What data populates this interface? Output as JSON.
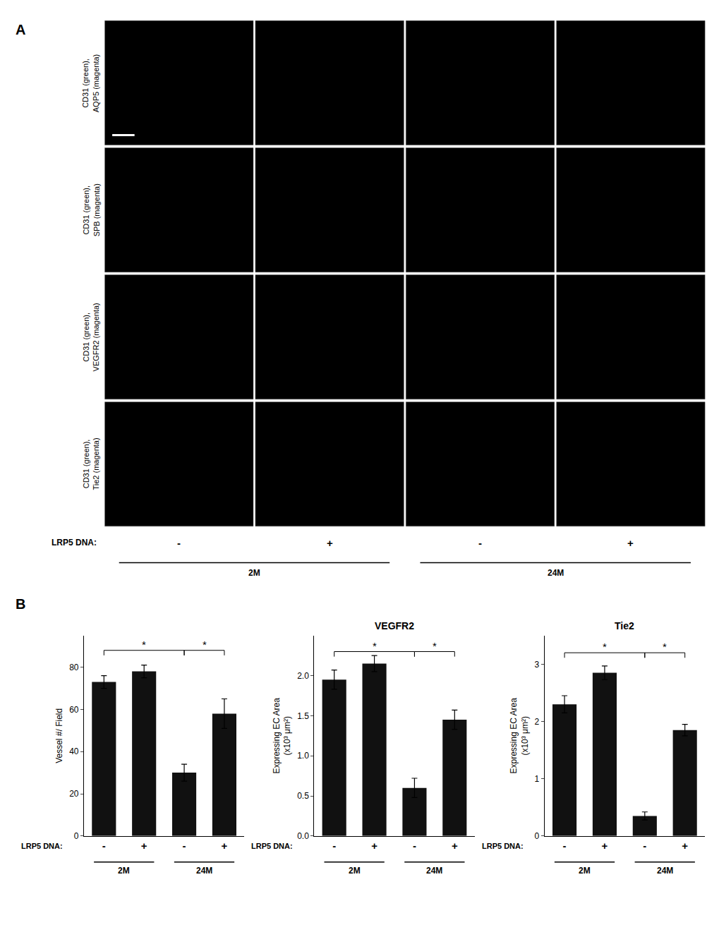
{
  "chart_data": [
    {
      "type": "image_grid",
      "panel": "A",
      "row_labels": [
        "CD31 (green),\nAQP5 (magenta)",
        "CD31 (green),\nSPB (magenta)",
        "CD31 (green),\nVEGFR2 (magenta)",
        "CD31 (green),\nTie2 (magenta)"
      ],
      "categories": [
        "-",
        "+",
        "-",
        "+"
      ],
      "xlabel": "LRP5 DNA:",
      "groups": [
        {
          "name": "2M",
          "span": [
            0,
            1
          ]
        },
        {
          "name": "24M",
          "span": [
            2,
            3
          ]
        }
      ],
      "color": "#000000"
    },
    {
      "type": "bar",
      "panel": "B",
      "ylabel": "Vessel #/ Field",
      "xlabel": "LRP5 DNA:",
      "categories": [
        "-",
        "+",
        "-",
        "+"
      ],
      "values": [
        73,
        78,
        30,
        58
      ],
      "errors": [
        3,
        3,
        4,
        7
      ],
      "ylim": [
        0,
        95
      ],
      "yticks": [
        0,
        20,
        40,
        60,
        80
      ],
      "color": "#111111",
      "grid": false,
      "groups": [
        {
          "name": "2M",
          "span": [
            0,
            1
          ]
        },
        {
          "name": "24M",
          "span": [
            2,
            3
          ]
        }
      ],
      "significance": [
        {
          "from": 0,
          "to": 2,
          "y": 88,
          "label": "*"
        },
        {
          "from": 2,
          "to": 3,
          "y": 88,
          "label": "*"
        }
      ]
    },
    {
      "type": "bar",
      "panel": "B",
      "title": "VEGFR2",
      "ylabel": "Expressing EC Area\n(x10³ μm²)",
      "xlabel": "LRP5 DNA:",
      "categories": [
        "-",
        "+",
        "-",
        "+"
      ],
      "values": [
        1.95,
        2.15,
        0.6,
        1.45
      ],
      "errors": [
        0.12,
        0.1,
        0.12,
        0.12
      ],
      "ylim": [
        0,
        2.5
      ],
      "yticks": [
        {
          "value": 0,
          "label": "0.0"
        },
        0.5,
        {
          "value": 1,
          "label": "1.0"
        },
        1.5,
        {
          "value": 2,
          "label": "2.0"
        }
      ],
      "color": "#111111",
      "grid": false,
      "groups": [
        {
          "name": "2M",
          "span": [
            0,
            1
          ]
        },
        {
          "name": "24M",
          "span": [
            2,
            3
          ]
        }
      ],
      "significance": [
        {
          "from": 0,
          "to": 2,
          "y": 2.3,
          "label": "*"
        },
        {
          "from": 2,
          "to": 3,
          "y": 2.3,
          "label": "*"
        }
      ]
    },
    {
      "type": "bar",
      "panel": "B",
      "title": "Tie2",
      "ylabel": "Expressing EC Area\n(x10³ μm²)",
      "xlabel": "LRP5 DNA:",
      "categories": [
        "-",
        "+",
        "-",
        "+"
      ],
      "values": [
        2.3,
        2.85,
        0.35,
        1.85
      ],
      "errors": [
        0.15,
        0.12,
        0.07,
        0.1
      ],
      "ylim": [
        0,
        3.5
      ],
      "yticks": [
        0,
        1,
        2,
        3
      ],
      "color": "#111111",
      "grid": false,
      "groups": [
        {
          "name": "2M",
          "span": [
            0,
            1
          ]
        },
        {
          "name": "24M",
          "span": [
            2,
            3
          ]
        }
      ],
      "significance": [
        {
          "from": 0,
          "to": 2,
          "y": 3.2,
          "label": "*"
        },
        {
          "from": 2,
          "to": 3,
          "y": 3.2,
          "label": "*"
        }
      ]
    }
  ]
}
